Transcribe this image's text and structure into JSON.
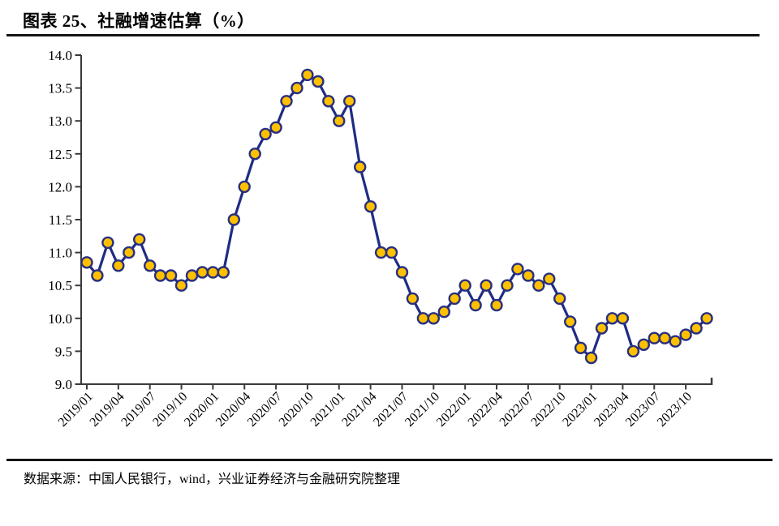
{
  "header": {
    "title": "图表 25、社融增速估算（%）"
  },
  "footer": {
    "source": "数据来源：中国人民银行，wind，兴业证券经济与金融研究院整理"
  },
  "colors": {
    "line": "#1f2c83",
    "marker_fill": "#ffc000",
    "marker_stroke": "#28307f",
    "axis": "#3a3a3a",
    "tick_text": "#000000"
  },
  "chart_data": {
    "type": "line",
    "title": "社融增速估算（%）",
    "ylabel": "",
    "xlabel": "",
    "ylim": [
      9.0,
      14.0
    ],
    "y_tick_step": 0.5,
    "grid": false,
    "legend_position": "none",
    "marker": "circle",
    "y_ticks": [
      "14.0",
      "13.5",
      "13.0",
      "12.5",
      "12.0",
      "11.5",
      "11.0",
      "10.5",
      "10.0",
      "9.5",
      "9.0"
    ],
    "x_tick_labels": [
      "2019/01",
      "2019/04",
      "2019/07",
      "2019/10",
      "2020/01",
      "2020/04",
      "2020/07",
      "2020/10",
      "2021/01",
      "2021/04",
      "2021/07",
      "2021/10",
      "2022/01",
      "2022/04",
      "2022/07",
      "2022/10",
      "2023/01",
      "2023/04",
      "2023/07",
      "2023/10"
    ],
    "x_tick_every": 3,
    "x": [
      "2019/01",
      "2019/02",
      "2019/03",
      "2019/04",
      "2019/05",
      "2019/06",
      "2019/07",
      "2019/08",
      "2019/09",
      "2019/10",
      "2019/11",
      "2019/12",
      "2020/01",
      "2020/02",
      "2020/03",
      "2020/04",
      "2020/05",
      "2020/06",
      "2020/07",
      "2020/08",
      "2020/09",
      "2020/10",
      "2020/11",
      "2020/12",
      "2021/01",
      "2021/02",
      "2021/03",
      "2021/04",
      "2021/05",
      "2021/06",
      "2021/07",
      "2021/08",
      "2021/09",
      "2021/10",
      "2021/11",
      "2021/12",
      "2022/01",
      "2022/02",
      "2022/03",
      "2022/04",
      "2022/05",
      "2022/06",
      "2022/07",
      "2022/08",
      "2022/09",
      "2022/10",
      "2022/11",
      "2022/12",
      "2023/01",
      "2023/02",
      "2023/03",
      "2023/04",
      "2023/05",
      "2023/06",
      "2023/07",
      "2023/08",
      "2023/09",
      "2023/10",
      "2023/11",
      "2023/12"
    ],
    "values": [
      10.85,
      10.65,
      11.15,
      10.8,
      11.0,
      11.2,
      10.8,
      10.65,
      10.65,
      10.5,
      10.65,
      10.7,
      10.7,
      10.7,
      11.5,
      12.0,
      12.5,
      12.8,
      12.9,
      13.3,
      13.5,
      13.7,
      13.6,
      13.3,
      13.0,
      13.3,
      12.3,
      11.7,
      11.0,
      11.0,
      10.7,
      10.3,
      10.0,
      10.0,
      10.1,
      10.3,
      10.5,
      10.2,
      10.5,
      10.2,
      10.5,
      10.75,
      10.65,
      10.5,
      10.6,
      10.3,
      9.95,
      9.55,
      9.4,
      9.85,
      10.0,
      10.0,
      9.5,
      9.6,
      9.7,
      9.7,
      9.65,
      9.75,
      9.85,
      10.0
    ]
  }
}
